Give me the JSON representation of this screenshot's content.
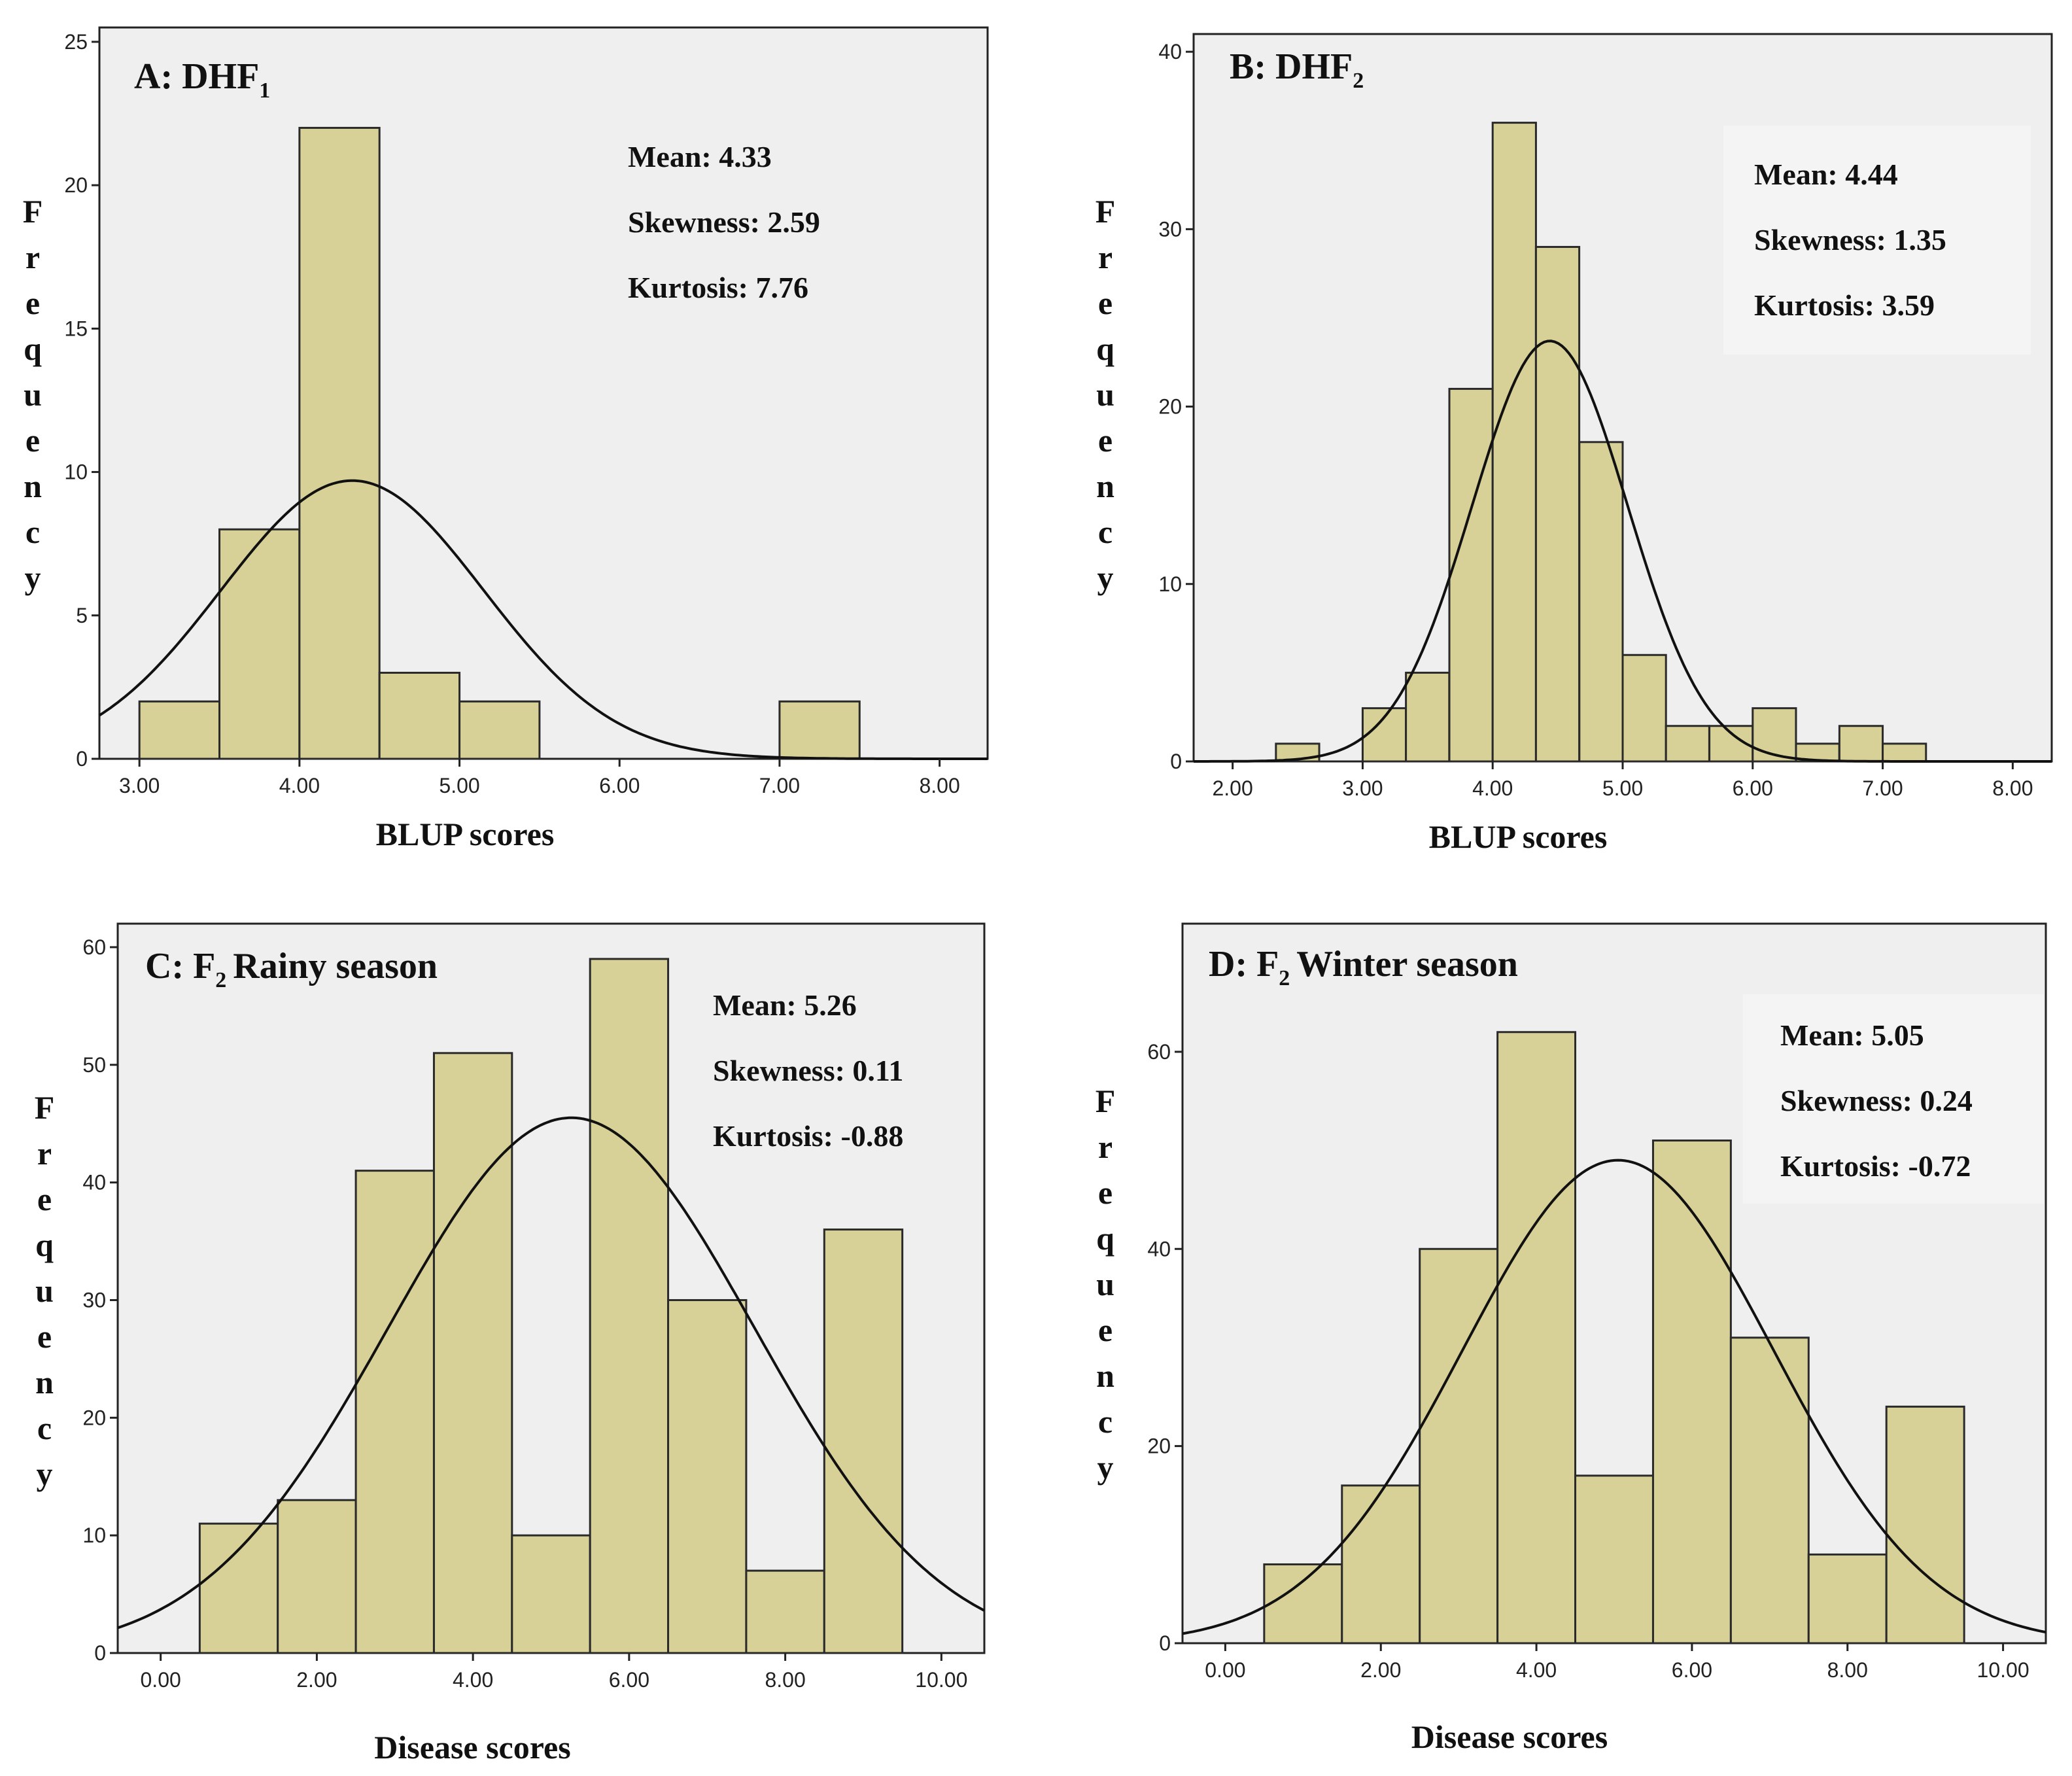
{
  "chart_data": [
    {
      "type": "histogram",
      "panel_label": "A: DHF",
      "panel_subscript": "1",
      "xlabel": "BLUP scores",
      "ylabel": "Frequency",
      "xlim": [
        2.75,
        8.3
      ],
      "ylim": [
        0,
        25.5
      ],
      "x_ticks": [
        3.0,
        4.0,
        5.0,
        6.0,
        7.0,
        8.0
      ],
      "x_tick_labels": [
        "3.00",
        "4.00",
        "5.00",
        "6.00",
        "7.00",
        "8.00"
      ],
      "y_ticks": [
        0,
        5,
        10,
        15,
        20,
        25
      ],
      "y_tick_labels": [
        "0",
        "5",
        "10",
        "15",
        "20",
        "25"
      ],
      "bin_width": 0.5,
      "bins": [
        {
          "start": 3.0,
          "value": 2
        },
        {
          "start": 3.5,
          "value": 8
        },
        {
          "start": 4.0,
          "value": 22
        },
        {
          "start": 4.5,
          "value": 3
        },
        {
          "start": 5.0,
          "value": 2
        },
        {
          "start": 7.0,
          "value": 2
        }
      ],
      "curve": {
        "mean": 4.33,
        "sd": 0.82,
        "peak": 9.7
      },
      "stats": {
        "mean": "Mean: 4.33",
        "skewness": "Skewness: 2.59",
        "kurtosis": "Kurtosis: 7.76"
      }
    },
    {
      "type": "histogram",
      "panel_label": "B: DHF",
      "panel_subscript": "2",
      "xlabel": "BLUP scores",
      "ylabel": "Frequency",
      "xlim": [
        1.7,
        8.3
      ],
      "ylim": [
        0,
        41
      ],
      "x_ticks": [
        2.0,
        3.0,
        4.0,
        5.0,
        6.0,
        7.0,
        8.0
      ],
      "x_tick_labels": [
        "2.00",
        "3.00",
        "4.00",
        "5.00",
        "6.00",
        "7.00",
        "8.00"
      ],
      "y_ticks": [
        0,
        10,
        20,
        30,
        40
      ],
      "y_tick_labels": [
        "0",
        "10",
        "20",
        "30",
        "40"
      ],
      "bin_width": 0.333,
      "bins": [
        {
          "start": 2.333,
          "value": 1
        },
        {
          "start": 3.0,
          "value": 3
        },
        {
          "start": 3.333,
          "value": 5
        },
        {
          "start": 3.667,
          "value": 21
        },
        {
          "start": 4.0,
          "value": 36
        },
        {
          "start": 4.333,
          "value": 29
        },
        {
          "start": 4.667,
          "value": 18
        },
        {
          "start": 5.0,
          "value": 6
        },
        {
          "start": 5.333,
          "value": 2
        },
        {
          "start": 5.667,
          "value": 2
        },
        {
          "start": 6.0,
          "value": 3
        },
        {
          "start": 6.333,
          "value": 1
        },
        {
          "start": 6.667,
          "value": 2
        },
        {
          "start": 7.0,
          "value": 1
        }
      ],
      "curve": {
        "mean": 4.44,
        "sd": 0.6,
        "peak": 23.7
      },
      "stats": {
        "mean": "Mean: 4.44",
        "skewness": "Skewness: 1.35",
        "kurtosis": "Kurtosis: 3.59"
      }
    },
    {
      "type": "histogram",
      "panel_label": "C: F",
      "panel_subscript": "2",
      "panel_label_rest": "Rainy season",
      "xlabel": "Disease scores",
      "ylabel": "Frequency",
      "xlim": [
        -0.55,
        10.55
      ],
      "ylim": [
        0,
        62
      ],
      "x_ticks": [
        0,
        2,
        4,
        6,
        8,
        10
      ],
      "x_tick_labels": [
        "0.00",
        "2.00",
        "4.00",
        "6.00",
        "8.00",
        "10.00"
      ],
      "y_ticks": [
        0,
        10,
        20,
        30,
        40,
        50,
        60
      ],
      "y_tick_labels": [
        "0",
        "10",
        "20",
        "30",
        "40",
        "50",
        "60"
      ],
      "bin_width": 1,
      "bins": [
        {
          "start": 0.5,
          "value": 11
        },
        {
          "start": 1.5,
          "value": 13
        },
        {
          "start": 2.5,
          "value": 41
        },
        {
          "start": 3.5,
          "value": 51
        },
        {
          "start": 4.5,
          "value": 10
        },
        {
          "start": 5.5,
          "value": 59
        },
        {
          "start": 6.5,
          "value": 30
        },
        {
          "start": 7.5,
          "value": 7
        },
        {
          "start": 8.5,
          "value": 36
        }
      ],
      "curve": {
        "mean": 5.26,
        "sd": 2.35,
        "peak": 45.5
      },
      "stats": {
        "mean": "Mean: 5.26",
        "skewness": "Skewness: 0.11",
        "kurtosis": "Kurtosis: -0.88"
      }
    },
    {
      "type": "histogram",
      "panel_label": "D: F",
      "panel_subscript": "2",
      "panel_label_rest": "Winter season",
      "xlabel": "Disease scores",
      "ylabel": "Frequency",
      "xlim": [
        -0.55,
        10.55
      ],
      "ylim": [
        0,
        73
      ],
      "x_ticks": [
        0,
        2,
        4,
        6,
        8,
        10
      ],
      "x_tick_labels": [
        "0.00",
        "2.00",
        "4.00",
        "6.00",
        "8.00",
        "10.00"
      ],
      "y_ticks": [
        0,
        20,
        40,
        60
      ],
      "y_tick_labels": [
        "0",
        "20",
        "40",
        "60"
      ],
      "bin_width": 1,
      "bins": [
        {
          "start": 0.5,
          "value": 8
        },
        {
          "start": 1.5,
          "value": 16
        },
        {
          "start": 2.5,
          "value": 40
        },
        {
          "start": 3.5,
          "value": 62
        },
        {
          "start": 4.5,
          "value": 17
        },
        {
          "start": 5.5,
          "value": 51
        },
        {
          "start": 6.5,
          "value": 31
        },
        {
          "start": 7.5,
          "value": 9
        },
        {
          "start": 8.5,
          "value": 24
        }
      ],
      "curve": {
        "mean": 5.05,
        "sd": 2.0,
        "peak": 49
      },
      "stats": {
        "mean": "Mean: 5.05",
        "skewness": "Skewness: 0.24",
        "kurtosis": "Kurtosis: -0.72"
      }
    }
  ]
}
